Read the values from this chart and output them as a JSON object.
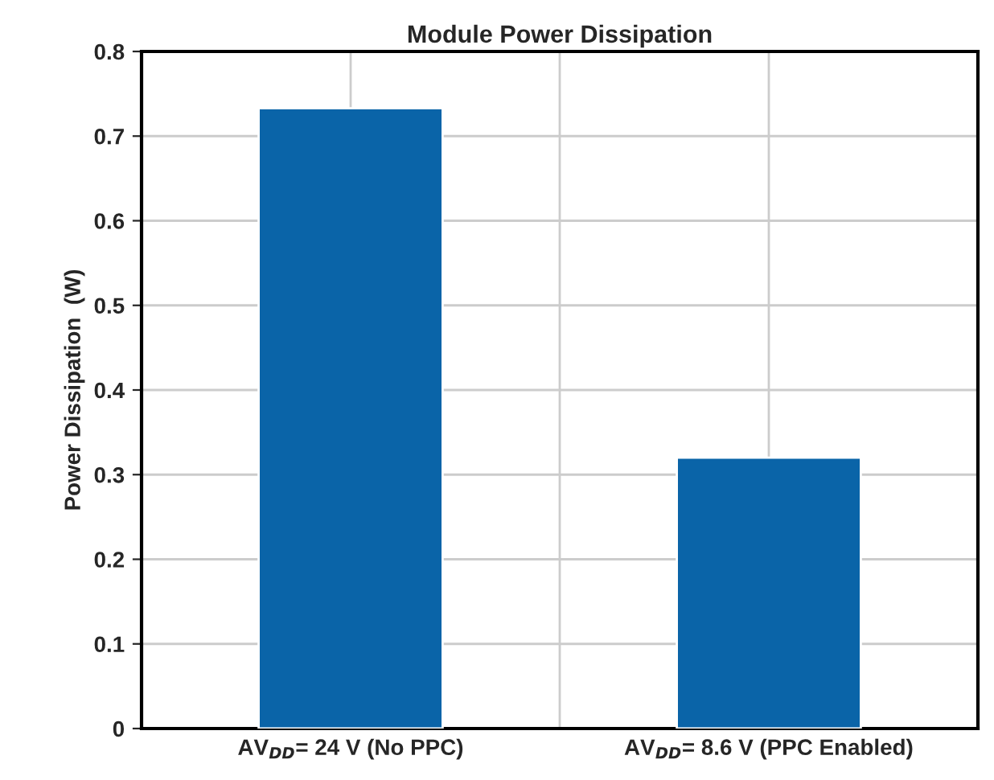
{
  "chart_data": {
    "type": "bar",
    "title": "Module Power Dissipation",
    "ylabel": "Power Dissipation  (W)",
    "categories": [
      "AV$_{DD}$= 24 V (No PPC)",
      "AV$_{DD}$= 8.6 V (PPC Enabled)"
    ],
    "values": [
      0.733,
      0.32
    ],
    "color": "#0a64a8",
    "ylim": [
      0,
      0.8
    ],
    "yticks": [
      0,
      0.1,
      0.2,
      0.3,
      0.4,
      0.5,
      0.6,
      0.7,
      0.8
    ],
    "grid": true
  }
}
